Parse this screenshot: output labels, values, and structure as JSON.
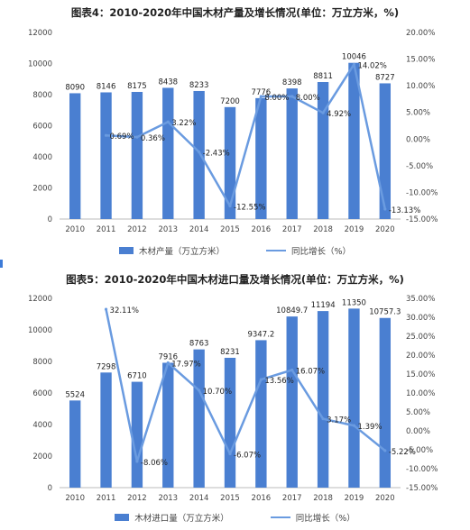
{
  "colors": {
    "bar": "#4a7fd1",
    "line": "#6a9be0",
    "axis": "#bbbbbb"
  },
  "chart_data": [
    {
      "type": "bar",
      "title": "图表4：2010-2020年中国木材产量及增长情况(单位：万立方米，%)",
      "categories": [
        "2010",
        "2011",
        "2012",
        "2013",
        "2014",
        "2015",
        "2016",
        "2017",
        "2018",
        "2019",
        "2020"
      ],
      "series": [
        {
          "name": "木材产量（万立方米）",
          "type": "bar",
          "axis": "left",
          "values": [
            8090,
            8146,
            8175,
            8438,
            8233,
            7200,
            7776,
            8398,
            8811,
            10046,
            8727
          ],
          "labels": [
            "8090",
            "8146",
            "8175",
            "8438",
            "8233",
            "7200",
            "7776",
            "8398",
            "8811",
            "10046",
            "8727"
          ]
        },
        {
          "name": "同比增长（%）",
          "type": "line",
          "axis": "right",
          "values": [
            null,
            0.69,
            0.36,
            3.22,
            -2.43,
            -12.55,
            8.0,
            8.0,
            4.92,
            14.02,
            -13.13
          ],
          "labels": [
            "",
            "0.69%",
            "0.36%",
            "3.22%",
            "-2.43%",
            "-12.55%",
            "8.00%",
            "8.00%",
            "4.92%",
            "14.02%",
            "-13.13%"
          ]
        }
      ],
      "ylim_left": [
        0,
        12000
      ],
      "yticks_left": [
        "0",
        "2000",
        "4000",
        "6000",
        "8000",
        "10000",
        "12000"
      ],
      "ylim_right": [
        -15,
        20
      ],
      "yticks_right": [
        "-15.00%",
        "-10.00%",
        "-5.00%",
        "0.00%",
        "5.00%",
        "10.00%",
        "15.00%",
        "20.00%"
      ],
      "legend_position": "bottom",
      "grid": false
    },
    {
      "type": "bar",
      "title": "图表5：2010-2020年中国木材进口量及增长情况(单位：万立方米，%)",
      "categories": [
        "2010",
        "2011",
        "2012",
        "2013",
        "2014",
        "2015",
        "2016",
        "2017",
        "2018",
        "2019",
        "2020"
      ],
      "series": [
        {
          "name": "木材进口量（万立方米）",
          "type": "bar",
          "axis": "left",
          "values": [
            5524,
            7298,
            6710,
            7916,
            8763,
            8231,
            9347.2,
            10849.7,
            11194,
            11350,
            10757.3
          ],
          "labels": [
            "5524",
            "7298",
            "6710",
            "7916",
            "8763",
            "8231",
            "9347.2",
            "10849.7",
            "11194",
            "11350",
            "10757.3"
          ]
        },
        {
          "name": "同比增长（%）",
          "type": "line",
          "axis": "right",
          "values": [
            null,
            32.11,
            -8.06,
            17.97,
            10.7,
            -6.07,
            13.56,
            16.07,
            3.17,
            1.39,
            -5.22
          ],
          "labels": [
            "",
            "32.11%",
            "-8.06%",
            "17.97%",
            "10.70%",
            "-6.07%",
            "13.56%",
            "16.07%",
            "3.17%",
            "1.39%",
            "-5.22%"
          ]
        }
      ],
      "ylim_left": [
        0,
        12000
      ],
      "yticks_left": [
        "0",
        "2000",
        "4000",
        "6000",
        "8000",
        "10000",
        "12000"
      ],
      "ylim_right": [
        -15,
        35
      ],
      "yticks_right": [
        "-15.00%",
        "-10.00%",
        "-5.00%",
        "0.00%",
        "5.00%",
        "10.00%",
        "15.00%",
        "20.00%",
        "25.00%",
        "30.00%",
        "35.00%"
      ],
      "legend_position": "bottom",
      "grid": false
    }
  ]
}
